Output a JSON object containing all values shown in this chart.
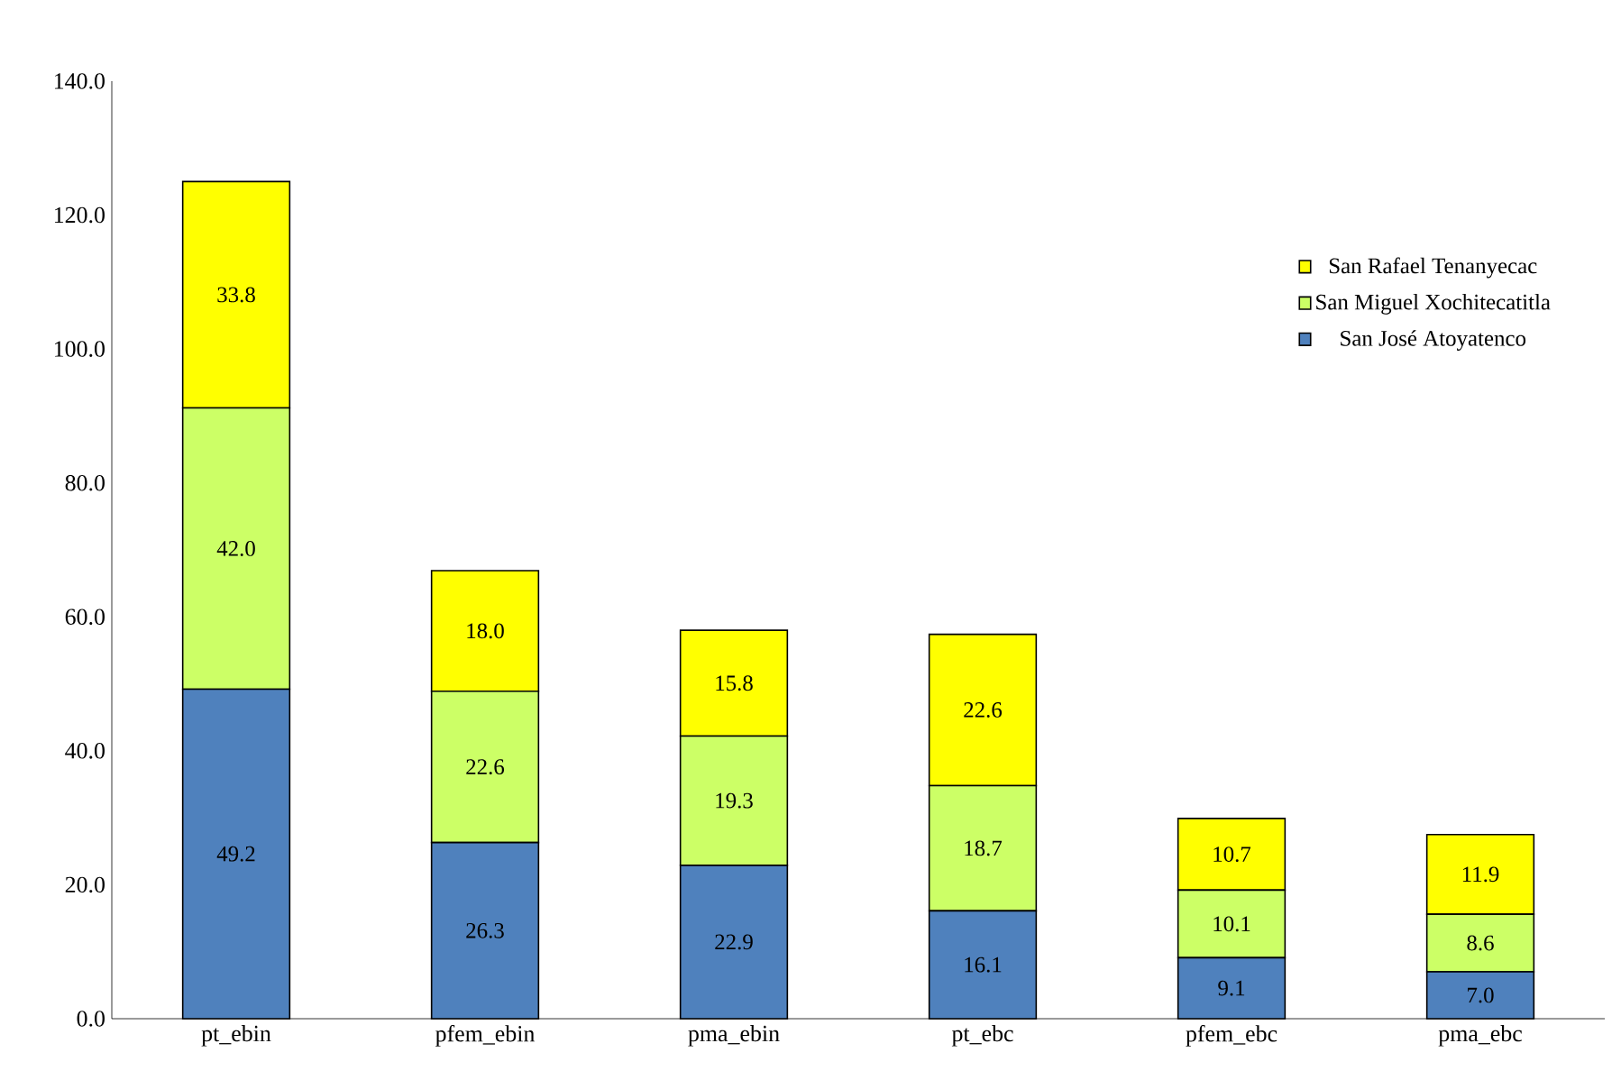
{
  "chart_data": {
    "type": "bar",
    "stacked": true,
    "categories": [
      "pt_ebin",
      "pfem_ebin",
      "pma_ebin",
      "pt_ebc",
      "pfem_ebc",
      "pma_ebc"
    ],
    "series": [
      {
        "name": "San José Atoyatenco",
        "color": "#4f81bd",
        "values": [
          49.2,
          26.3,
          22.9,
          16.1,
          9.1,
          7.0
        ],
        "value_labels": [
          "49.2",
          "26.3",
          "22.9",
          "16.1",
          "9.1",
          "7.0"
        ]
      },
      {
        "name": "San Miguel Xochitecatitla",
        "color": "#ccff66",
        "values": [
          42.0,
          22.6,
          19.3,
          18.7,
          10.1,
          8.6
        ],
        "value_labels": [
          "42.0",
          "22.6",
          "19.3",
          "18.7",
          "10.1",
          "8.6"
        ]
      },
      {
        "name": "San Rafael Tenanyecac",
        "color": "#ffff00",
        "values": [
          33.8,
          18.0,
          15.8,
          22.6,
          10.7,
          11.9
        ],
        "value_labels": [
          "33.8",
          "18.0",
          "15.8",
          "22.6",
          "10.7",
          "11.9"
        ]
      }
    ],
    "ylim": [
      0,
      140
    ],
    "yticks": [
      {
        "value": 0,
        "label": "0.0"
      },
      {
        "value": 20,
        "label": "20.0"
      },
      {
        "value": 40,
        "label": "40.0"
      },
      {
        "value": 60,
        "label": "60.0"
      },
      {
        "value": 80,
        "label": "80.0"
      },
      {
        "value": 100,
        "label": "100.0"
      },
      {
        "value": 120,
        "label": "120.0"
      },
      {
        "value": 140,
        "label": "140.0"
      }
    ],
    "grid": false,
    "legend": "top right"
  }
}
